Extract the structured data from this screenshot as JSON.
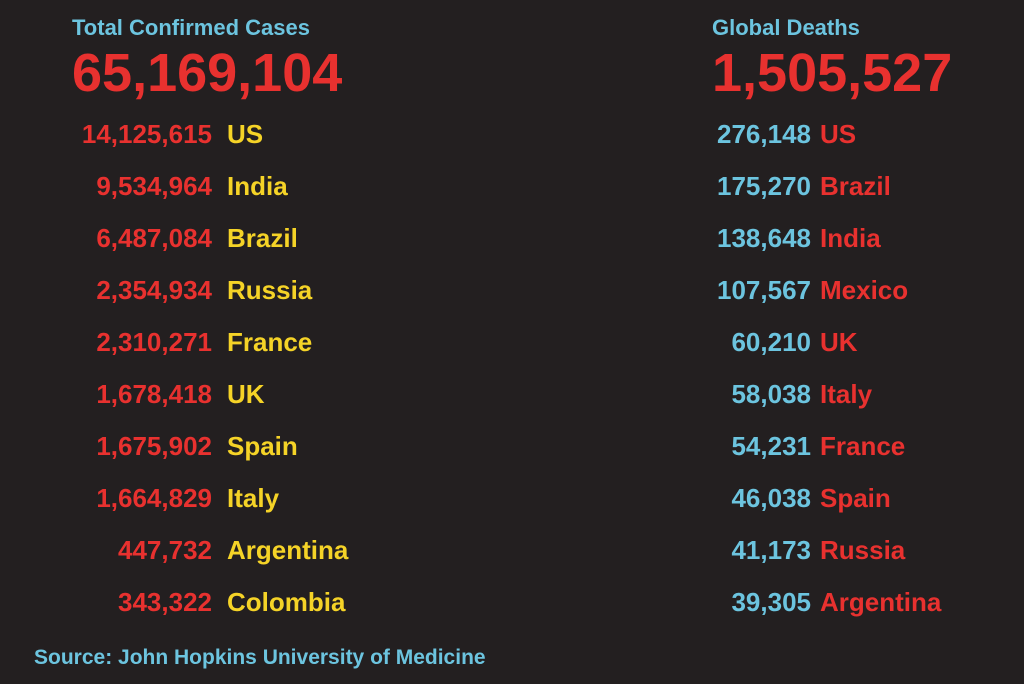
{
  "cases": {
    "title": "Total Confirmed Cases",
    "total": "65,169,104",
    "rows": [
      [
        "14,125,615",
        "US"
      ],
      [
        "9,534,964",
        "India"
      ],
      [
        "6,487,084",
        "Brazil"
      ],
      [
        "2,354,934",
        "Russia"
      ],
      [
        "2,310,271",
        "France"
      ],
      [
        "1,678,418",
        "UK"
      ],
      [
        "1,675,902",
        "Spain"
      ],
      [
        "1,664,829",
        "Italy"
      ],
      [
        "447,732",
        "Argentina"
      ],
      [
        "343,322",
        "Colombia"
      ]
    ]
  },
  "deaths": {
    "title": "Global Deaths",
    "total": "1,505,527",
    "rows": [
      [
        "276,148",
        "US"
      ],
      [
        "175,270",
        "Brazil"
      ],
      [
        "138,648",
        "India"
      ],
      [
        "107,567",
        "Mexico"
      ],
      [
        "60,210",
        "UK"
      ],
      [
        "58,038",
        "Italy"
      ],
      [
        "54,231",
        "France"
      ],
      [
        "46,038",
        "Spain"
      ],
      [
        "41,173",
        "Russia"
      ],
      [
        "39,305",
        "Argentina"
      ]
    ]
  },
  "source": "Source: John Hopkins University of Medicine"
}
